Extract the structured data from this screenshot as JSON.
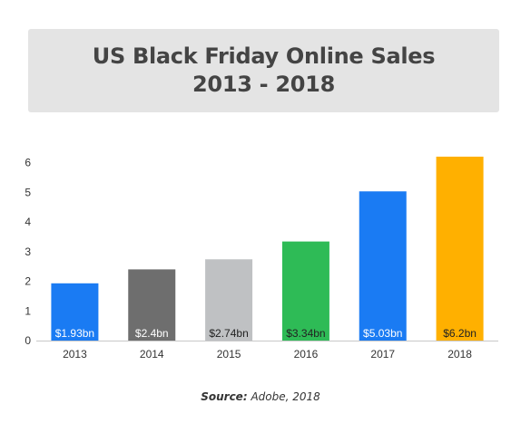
{
  "chart_data": {
    "type": "bar",
    "title": "US Black Friday Online Sales",
    "subtitle": "2013 - 2018",
    "categories": [
      "2013",
      "2014",
      "2015",
      "2016",
      "2017",
      "2018"
    ],
    "values": [
      1.93,
      2.4,
      2.74,
      3.34,
      5.03,
      6.2
    ],
    "data_labels": [
      "$1.93bn",
      "$2.4bn",
      "$2.74bn",
      "$3.34bn",
      "$5.03bn",
      "$6.2bn"
    ],
    "bar_colors": [
      "#1a7bf3",
      "#6e6e6e",
      "#bfc1c3",
      "#2ebb56",
      "#1a7bf3",
      "#ffb000"
    ],
    "label_colors": [
      "#ffffff",
      "#ffffff",
      "#222222",
      "#222222",
      "#ffffff",
      "#222222"
    ],
    "yticks": [
      "0",
      "1",
      "2",
      "3",
      "4",
      "5",
      "6"
    ],
    "ylim": [
      0,
      6
    ],
    "xlabel": "",
    "ylabel": "",
    "grid": false
  },
  "source": {
    "label": "Source:",
    "text": " Adobe, 2018"
  }
}
